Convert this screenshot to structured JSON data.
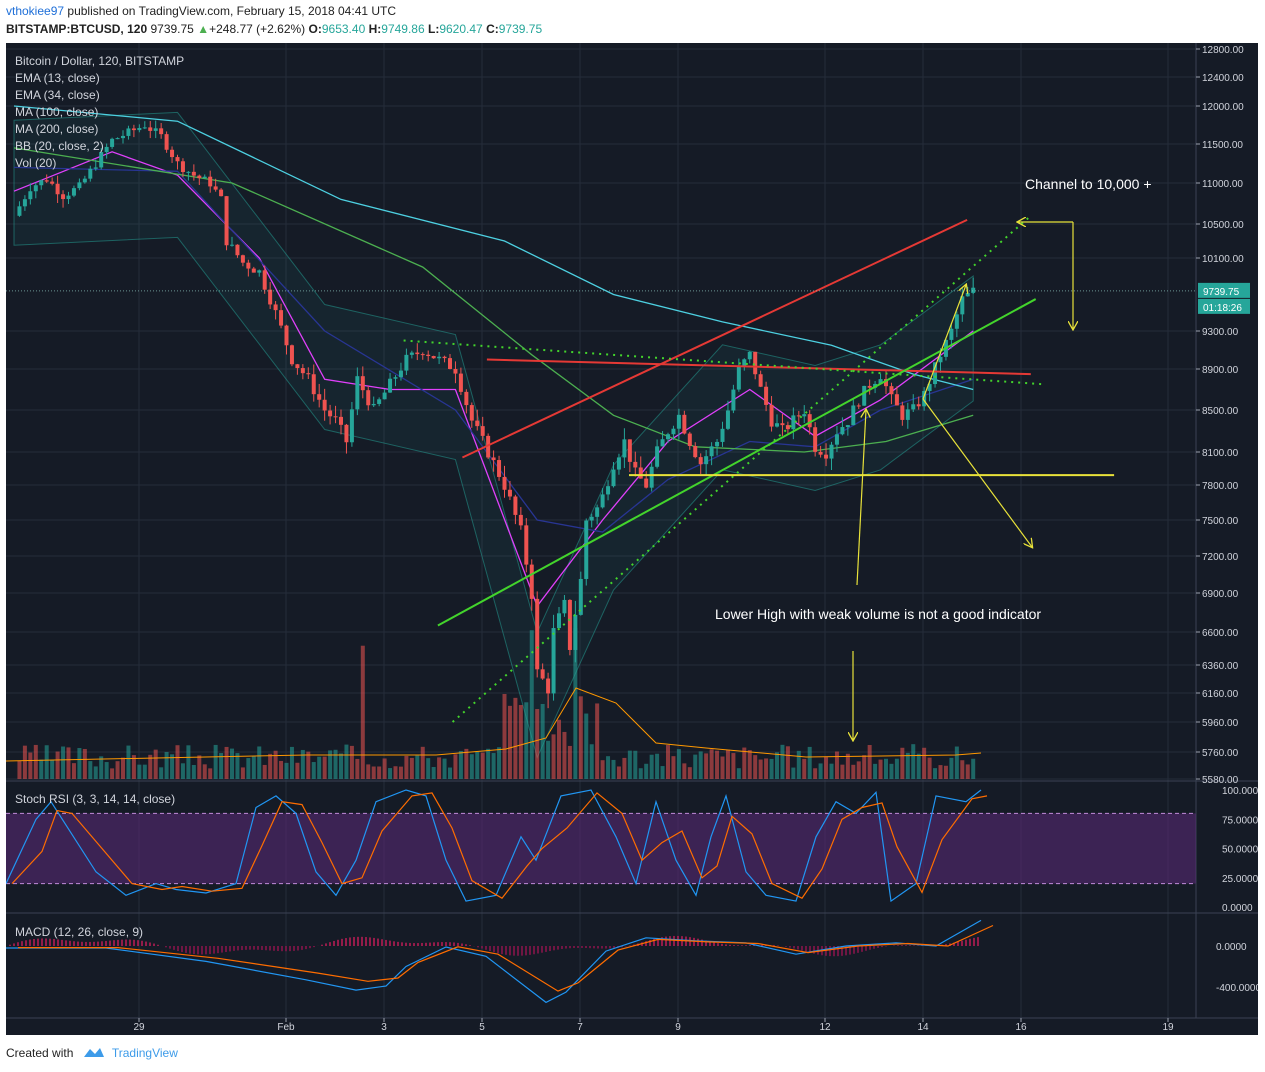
{
  "header": {
    "user": "vthokiee97",
    "published": "published on TradingView.com, February 15, 2018 04:41 UTC",
    "symbol": "BITSTAMP:BTCUSD, 120",
    "last": "9739.75",
    "change": "+248.77 (+2.62%)",
    "o_label": "O:",
    "o": "9653.40",
    "h_label": "H:",
    "h": "9749.86",
    "l_label": "L:",
    "l": "9620.47",
    "c_label": "C:",
    "c": "9739.75"
  },
  "legend": [
    "Bitcoin / Dollar, 120, BITSTAMP",
    "EMA (13, close)",
    "EMA (34, close)",
    "MA (100, close)",
    "MA (200, close)",
    "BB (20, close, 2)",
    "Vol (20)"
  ],
  "annotations": {
    "channel": "Channel to 10,000 +",
    "lower_high": "Lower High with weak volume is not a good indicator"
  },
  "price_badges": {
    "last": "9739.75",
    "countdown": "01:18:26"
  },
  "panes": {
    "stoch_label": "Stoch RSI (3, 3, 14, 14, close)",
    "macd_label": "MACD (12, 26, close, 9)"
  },
  "colors": {
    "background": "#151b26",
    "up": "#26a69a",
    "down": "#ef5350",
    "ema13": "#e040fb",
    "ema34": "#283593",
    "ma100": "#4dd0e1",
    "ma200": "#4caf50",
    "bb": "#26a69a",
    "trend_red": "#e53935",
    "trend_green": "#43d42c",
    "arrow_yellow": "#e8e23a"
  },
  "footer": {
    "created": "Created with",
    "brand": "TradingView",
    "logo_icon": "tradingview-logo-icon"
  },
  "chart_data": [
    {
      "type": "candlestick",
      "title": "Bitcoin / Dollar, 120, BITSTAMP",
      "x_ticks": [
        "29",
        "Feb",
        "3",
        "5",
        "7",
        "9",
        "12",
        "14",
        "16",
        "19"
      ],
      "y_ticks": [
        "12800.00",
        "12400.00",
        "12000.00",
        "11500.00",
        "11000.00",
        "10500.00",
        "10100.00",
        "9300.00",
        "8900.00",
        "8500.00",
        "8100.00",
        "7800.00",
        "7500.00",
        "7200.00",
        "6900.00",
        "6600.00",
        "6360.00",
        "6160.00",
        "5960.00",
        "5760.00",
        "5580.00"
      ],
      "ylim": [
        5580,
        12800
      ],
      "last_price": 9739.75,
      "series": [
        {
          "name": "BITSTAMP:BTCUSD",
          "close_path": [
            [
              0,
              10600
            ],
            [
              3,
              10950
            ],
            [
              6,
              11050
            ],
            [
              9,
              10850
            ],
            [
              12,
              10950
            ],
            [
              15,
              11250
            ],
            [
              18,
              11550
            ],
            [
              21,
              11650
            ],
            [
              24,
              11750
            ],
            [
              27,
              11600
            ],
            [
              30,
              11250
            ],
            [
              33,
              11100
            ],
            [
              36,
              11000
            ],
            [
              38,
              10800
            ],
            [
              39,
              10300
            ],
            [
              42,
              10050
            ],
            [
              45,
              9950
            ],
            [
              48,
              9500
            ],
            [
              51,
              9000
            ],
            [
              54,
              8800
            ],
            [
              57,
              8500
            ],
            [
              59,
              8400
            ],
            [
              61,
              8200
            ],
            [
              63,
              8800
            ],
            [
              66,
              8500
            ],
            [
              69,
              8750
            ],
            [
              72,
              9000
            ],
            [
              75,
              9100
            ],
            [
              78,
              9000
            ],
            [
              81,
              8900
            ],
            [
              84,
              8400
            ],
            [
              87,
              8100
            ],
            [
              90,
              7800
            ],
            [
              93,
              7400
            ],
            [
              95,
              6900
            ],
            [
              96,
              6300
            ],
            [
              98,
              6200
            ],
            [
              99,
              6600
            ],
            [
              101,
              6800
            ],
            [
              102,
              6500
            ],
            [
              104,
              7000
            ],
            [
              105,
              7500
            ],
            [
              107,
              7600
            ],
            [
              108,
              7700
            ],
            [
              110,
              8000
            ],
            [
              112,
              8200
            ],
            [
              114,
              7900
            ],
            [
              116,
              7800
            ],
            [
              118,
              8100
            ],
            [
              120,
              8300
            ],
            [
              122,
              8450
            ],
            [
              124,
              8200
            ],
            [
              126,
              8000
            ],
            [
              129,
              8200
            ],
            [
              131,
              8500
            ],
            [
              133,
              8900
            ],
            [
              135,
              9050
            ],
            [
              137,
              8700
            ],
            [
              139,
              8400
            ],
            [
              141,
              8300
            ],
            [
              143,
              8400
            ],
            [
              145,
              8500
            ],
            [
              147,
              8150
            ],
            [
              149,
              8100
            ],
            [
              151,
              8300
            ],
            [
              153,
              8400
            ],
            [
              155,
              8600
            ],
            [
              157,
              8750
            ],
            [
              159,
              8850
            ],
            [
              161,
              8600
            ],
            [
              163,
              8450
            ],
            [
              165,
              8500
            ],
            [
              167,
              8650
            ],
            [
              170,
              9050
            ],
            [
              172,
              9300
            ],
            [
              174,
              9650
            ],
            [
              176,
              9740
            ]
          ]
        },
        {
          "name": "EMA (13, close)",
          "path": [
            [
              0,
              10900
            ],
            [
              18,
              11400
            ],
            [
              30,
              11100
            ],
            [
              45,
              10100
            ],
            [
              57,
              8800
            ],
            [
              69,
              8700
            ],
            [
              81,
              8700
            ],
            [
              96,
              6800
            ],
            [
              108,
              7500
            ],
            [
              120,
              8200
            ],
            [
              135,
              8700
            ],
            [
              147,
              8250
            ],
            [
              159,
              8600
            ],
            [
              176,
              9300
            ]
          ]
        },
        {
          "name": "EMA (34, close)",
          "path": [
            [
              0,
              11200
            ],
            [
              30,
              11150
            ],
            [
              57,
              9300
            ],
            [
              81,
              8500
            ],
            [
              96,
              7500
            ],
            [
              108,
              7400
            ],
            [
              120,
              7850
            ],
            [
              135,
              8200
            ],
            [
              147,
              8150
            ],
            [
              159,
              8500
            ],
            [
              176,
              8800
            ]
          ]
        },
        {
          "name": "MA (100, close)",
          "path": [
            [
              0,
              12000
            ],
            [
              30,
              11800
            ],
            [
              60,
              10800
            ],
            [
              90,
              10300
            ],
            [
              110,
              9700
            ],
            [
              130,
              9400
            ],
            [
              150,
              9150
            ],
            [
              165,
              8850
            ],
            [
              176,
              8700
            ]
          ]
        },
        {
          "name": "MA (200, close)",
          "path": [
            [
              0,
              11450
            ],
            [
              40,
              11000
            ],
            [
              75,
              10000
            ],
            [
              95,
              9050
            ],
            [
              110,
              8450
            ],
            [
              125,
              8150
            ],
            [
              145,
              8100
            ],
            [
              160,
              8200
            ],
            [
              176,
              8450
            ]
          ]
        },
        {
          "name": "BB (20, close, 2)",
          "path": [
            [
              0,
              11100
            ],
            [
              30,
              11200
            ],
            [
              57,
              9000
            ],
            [
              81,
              8700
            ],
            [
              96,
              6200
            ],
            [
              110,
              7500
            ],
            [
              130,
              8600
            ],
            [
              147,
              8400
            ],
            [
              159,
              8600
            ],
            [
              176,
              9300
            ]
          ]
        }
      ],
      "trendlines": [
        {
          "name": "channel-top",
          "from": [
            "feb 5.6",
            8050
          ],
          "to": [
            "feb 15.9",
            10550
          ],
          "color": "red"
        },
        {
          "name": "resistance",
          "from": [
            "feb 6.1",
            9000
          ],
          "to": [
            "feb 17.2",
            8850
          ],
          "color": "red"
        },
        {
          "name": "channel-bottom",
          "from": [
            "feb 5.1",
            6650
          ],
          "to": [
            "feb 17.3",
            9650
          ],
          "color": "green"
        },
        {
          "name": "support-dotted",
          "from": [
            "feb 5.4",
            5960
          ],
          "to": [
            "feb 17.2",
            10600
          ],
          "color": "green-dotted"
        },
        {
          "name": "neckline-dotted",
          "from": [
            "feb 4.4",
            9200
          ],
          "to": [
            "feb 17.5",
            8750
          ],
          "color": "green-dotted"
        },
        {
          "name": "base",
          "from": [
            "feb 9.0",
            7890
          ],
          "to": [
            "feb 18.9",
            7890
          ],
          "color": "yellow"
        }
      ]
    },
    {
      "type": "bar",
      "title": "Vol (20)",
      "note": "volume histogram with a 20-period average line"
    },
    {
      "type": "line",
      "title": "Stoch RSI (3, 3, 14, 14, close)",
      "y_ticks": [
        "100.0000",
        "75.0000",
        "50.0000",
        "25.0000",
        "0.0000"
      ],
      "ylim": [
        0,
        100
      ],
      "bands": [
        20,
        80
      ]
    },
    {
      "type": "line",
      "title": "MACD (12, 26, close, 9)",
      "y_ticks": [
        "0.0000",
        "-400.0000"
      ]
    }
  ]
}
